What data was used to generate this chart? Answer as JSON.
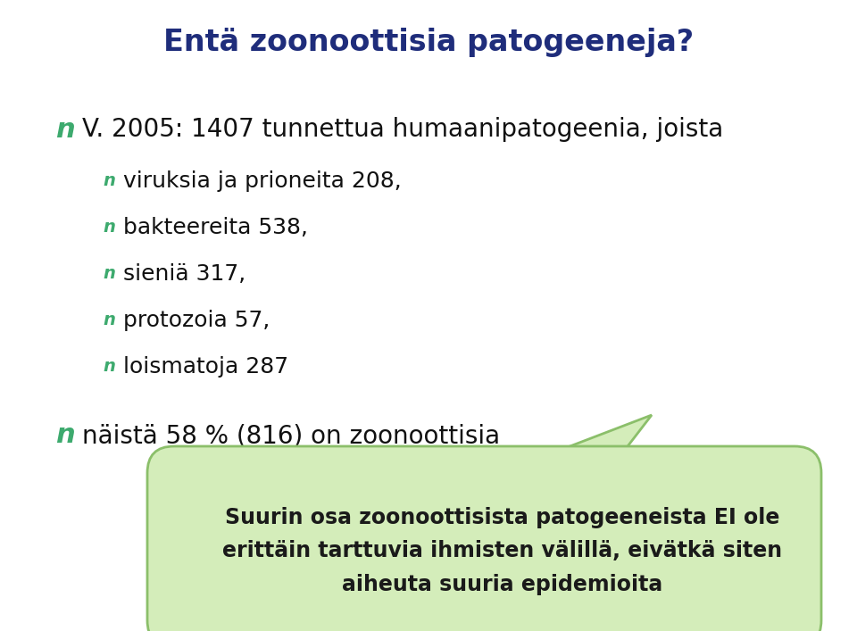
{
  "title": "Entä zoonoottisia patogeeneja?",
  "title_color": "#1F2D7B",
  "background_color": "#FFFFFF",
  "bullet_color": "#3DAA6E",
  "main_bullet": "V. 2005: 1407 tunnettua humaanipatogeenia, joista",
  "sub_bullets": [
    "viruksia ja prioneita 208,",
    "bakteereita 538,",
    "sieniä 317,",
    "protozoia 57,",
    "loismatoja 287"
  ],
  "extra_bullet": "näistä 58 % (816) on zoonoottisia",
  "callout_lines": [
    "Suurin osa zoonoottisista patogeeneista EI ole",
    "erittäin tarttuvia ihmisten välillä, eivätkä siten",
    "aiheuta suuria epidemioita"
  ],
  "callout_bg": "#D4EDBA",
  "callout_border": "#8BBF6A",
  "callout_text_color": "#1a1a1a",
  "figsize": [
    9.6,
    7.07
  ],
  "dpi": 100
}
